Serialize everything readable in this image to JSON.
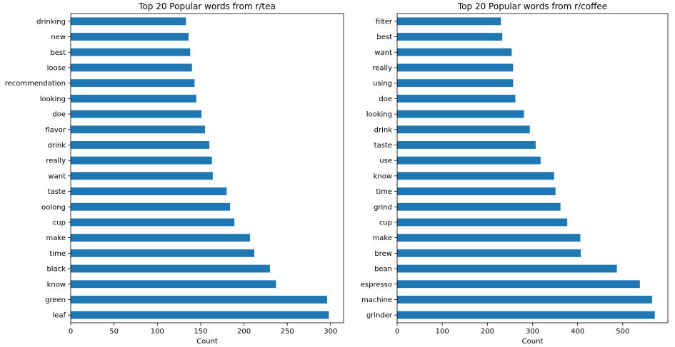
{
  "chart_data": [
    {
      "type": "bar",
      "orientation": "horizontal",
      "title": "Top 20 Popular words from r/tea",
      "xlabel": "Count",
      "ylabel": "",
      "xlim": [
        0,
        315
      ],
      "xticks": [
        0,
        50,
        100,
        150,
        200,
        250,
        300
      ],
      "bar_color": "#1f77b4",
      "grid": false,
      "categories": [
        "drinking",
        "new",
        "best",
        "loose",
        "recommendation",
        "looking",
        "doe",
        "flavor",
        "drink",
        "really",
        "want",
        "taste",
        "oolong",
        "cup",
        "make",
        "time",
        "black",
        "know",
        "green",
        "leaf"
      ],
      "values": [
        133,
        136,
        138,
        140,
        143,
        145,
        151,
        155,
        160,
        163,
        164,
        180,
        184,
        189,
        207,
        212,
        230,
        237,
        296,
        298
      ]
    },
    {
      "type": "bar",
      "orientation": "horizontal",
      "title": "Top 20 Popular words from r/coffee",
      "xlabel": "Count",
      "ylabel": "",
      "xlim": [
        0,
        600
      ],
      "xticks": [
        0,
        100,
        200,
        300,
        400,
        500
      ],
      "bar_color": "#1f77b4",
      "grid": false,
      "categories": [
        "filter",
        "best",
        "want",
        "really",
        "using",
        "doe",
        "looking",
        "drink",
        "taste",
        "use",
        "know",
        "time",
        "grind",
        "cup",
        "make",
        "brew",
        "bean",
        "espresso",
        "machine",
        "grinder"
      ],
      "values": [
        230,
        233,
        254,
        257,
        257,
        262,
        281,
        294,
        307,
        318,
        348,
        351,
        362,
        377,
        406,
        407,
        487,
        538,
        565,
        571
      ]
    }
  ]
}
